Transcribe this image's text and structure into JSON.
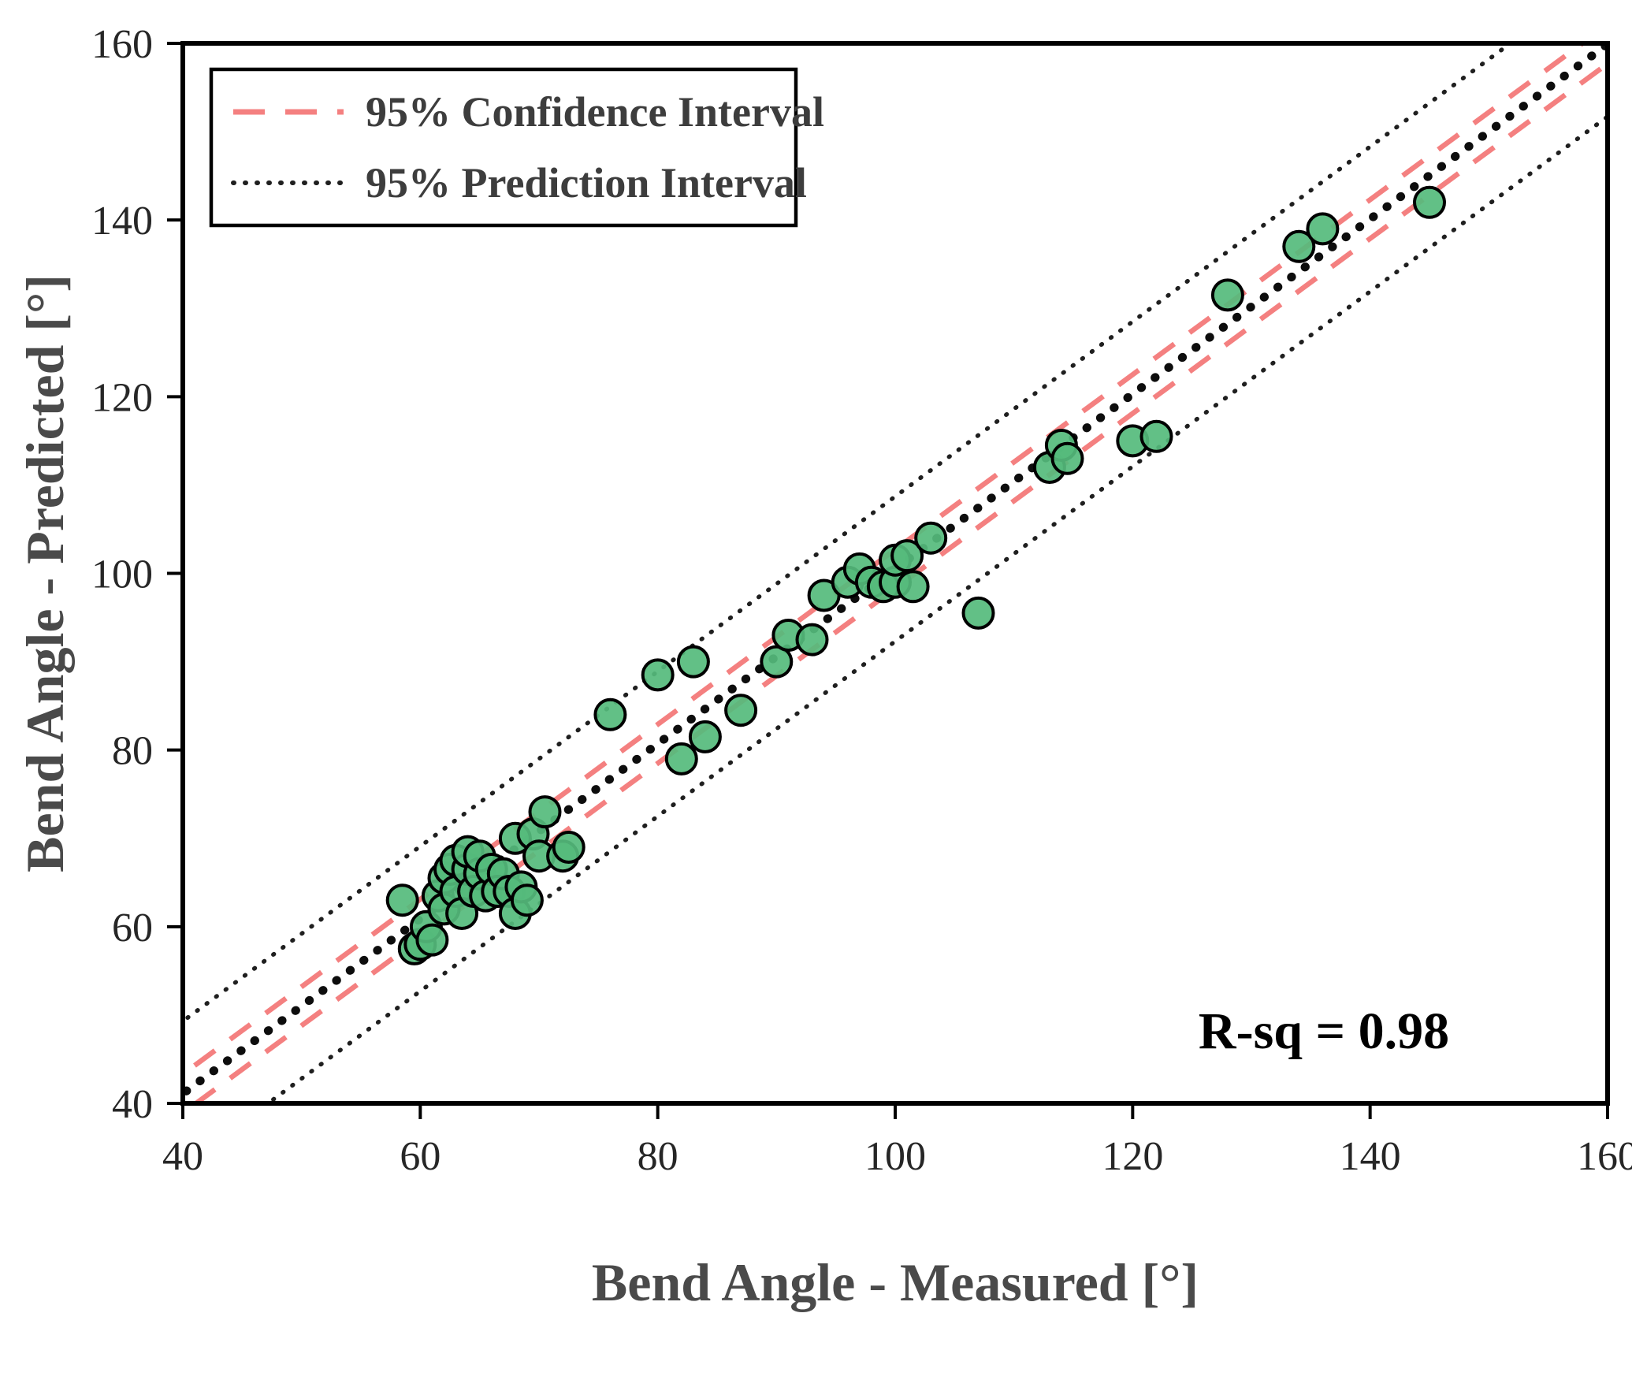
{
  "chart_data": {
    "type": "scatter",
    "title": "",
    "xlabel": "Bend Angle - Measured [°]",
    "ylabel": "Bend Angle - Predicted [°]",
    "xlim": [
      40,
      160
    ],
    "ylim": [
      40,
      160
    ],
    "xticks": [
      40,
      60,
      80,
      100,
      120,
      140,
      160
    ],
    "yticks": [
      40,
      60,
      80,
      100,
      120,
      140,
      160
    ],
    "grid": false,
    "annotation": "R-sq = 0.98",
    "legend_position": "top-left",
    "legend": [
      {
        "label": "95% Confidence Interval",
        "style": "dashed",
        "color": "#F48080"
      },
      {
        "label": "95% Prediction Interval",
        "style": "dotted",
        "color": "#1f1f1f"
      }
    ],
    "fit": {
      "slope": 0.99,
      "intercept": 1.5
    },
    "confidence_offset": 2.2,
    "prediction_offset": 8.2,
    "colors": {
      "point_fill": "#55BB7C",
      "point_edge": "#000000",
      "fit_line": "#0d0d0d",
      "prediction_line": "#1f1f1f",
      "confidence_line": "#F48080",
      "axis": "#000000"
    },
    "points": [
      [
        58.5,
        63
      ],
      [
        59.5,
        57.5
      ],
      [
        60,
        58
      ],
      [
        60.5,
        60
      ],
      [
        61,
        58.5
      ],
      [
        61.5,
        63.5
      ],
      [
        62,
        62
      ],
      [
        62,
        65.5
      ],
      [
        62.5,
        66.5
      ],
      [
        63,
        64
      ],
      [
        63,
        67.5
      ],
      [
        63.5,
        61.5
      ],
      [
        64,
        66.5
      ],
      [
        64,
        68.5
      ],
      [
        64.5,
        64
      ],
      [
        65,
        66
      ],
      [
        65,
        68
      ],
      [
        65.5,
        63.5
      ],
      [
        66,
        66.5
      ],
      [
        66.5,
        64
      ],
      [
        67,
        66
      ],
      [
        67.5,
        64
      ],
      [
        68,
        61.5
      ],
      [
        68,
        70
      ],
      [
        68.5,
        64.5
      ],
      [
        69,
        63
      ],
      [
        69.5,
        70.5
      ],
      [
        70,
        68
      ],
      [
        70.5,
        73
      ],
      [
        72,
        68
      ],
      [
        72.5,
        69
      ],
      [
        76,
        84
      ],
      [
        80,
        88.5
      ],
      [
        82,
        79
      ],
      [
        83,
        90
      ],
      [
        84,
        81.5
      ],
      [
        87,
        84.5
      ],
      [
        90,
        90
      ],
      [
        91,
        93
      ],
      [
        93,
        92.5
      ],
      [
        94,
        97.5
      ],
      [
        96,
        99
      ],
      [
        97,
        100.5
      ],
      [
        98,
        99
      ],
      [
        99,
        98.5
      ],
      [
        100,
        99
      ],
      [
        100,
        101.5
      ],
      [
        101,
        102
      ],
      [
        101.5,
        98.5
      ],
      [
        103,
        104
      ],
      [
        107,
        95.5
      ],
      [
        113,
        112
      ],
      [
        114,
        114.5
      ],
      [
        114.5,
        113
      ],
      [
        120,
        115
      ],
      [
        122,
        115.5
      ],
      [
        128,
        131.5
      ],
      [
        134,
        137
      ],
      [
        136,
        139
      ],
      [
        145,
        142
      ]
    ]
  }
}
